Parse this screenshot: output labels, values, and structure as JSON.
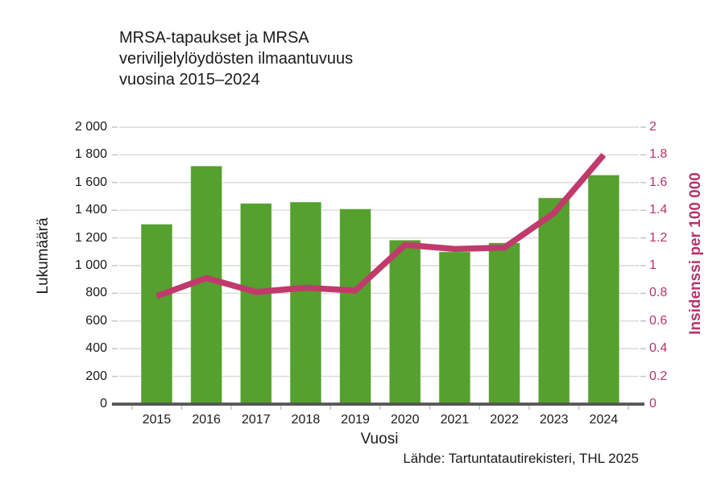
{
  "chart_data": {
    "type": "combo",
    "title": "MRSA-tapaukset ja MRSA veriviljelylöydösten ilmaantuvuus vuosina 2015–2024",
    "title_lines": [
      "MRSA-tapaukset ja MRSA",
      "veriviljelylöydösten ilmaantuvuus",
      "vuosina 2015–2024"
    ],
    "categories": [
      "2015",
      "2016",
      "2017",
      "2018",
      "2019",
      "2020",
      "2021",
      "2022",
      "2023",
      "2024"
    ],
    "series": [
      {
        "name": "MRSA-tapaukset",
        "type": "bar",
        "axis": "left",
        "color": "#55a02e",
        "values": [
          1300,
          1720,
          1450,
          1460,
          1410,
          1185,
          1100,
          1165,
          1490,
          1655
        ]
      },
      {
        "name": "MRSA veriviljelylöydösten ilmaantuvuus",
        "type": "line",
        "axis": "right",
        "color": "#c13a6c",
        "values": [
          0.78,
          0.91,
          0.81,
          0.84,
          0.82,
          1.15,
          1.12,
          1.13,
          1.38,
          1.8
        ]
      }
    ],
    "x_axis": {
      "title": "Vuosi"
    },
    "left_axis": {
      "title": "Lukumäärä",
      "range": [
        0,
        2000
      ],
      "tick_step": 200,
      "tick_labels": [
        "0",
        "200",
        "400",
        "600",
        "800",
        "1 000",
        "1 200",
        "1 400",
        "1 600",
        "1 800",
        "2 000"
      ],
      "color": "#1a1a1a"
    },
    "right_axis": {
      "title": "Insidenssi per 100 000",
      "range": [
        0,
        2
      ],
      "tick_step": 0.2,
      "tick_labels": [
        "0",
        "0.2",
        "0.4",
        "0.6",
        "0.8",
        "1",
        "1.2",
        "1.4",
        "1.6",
        "1.8",
        "2"
      ],
      "color": "#b8336a"
    },
    "grid": true,
    "legend": false,
    "source": "Lähde: Tartuntatautirekisteri, THL 2025",
    "colors": {
      "bar": "#55a02e",
      "line": "#c13a6c",
      "axis_line": "#555555",
      "gridline": "#d9d9d9",
      "tick_mark": "#c0c0c0",
      "text": "#1a1a1a"
    }
  }
}
